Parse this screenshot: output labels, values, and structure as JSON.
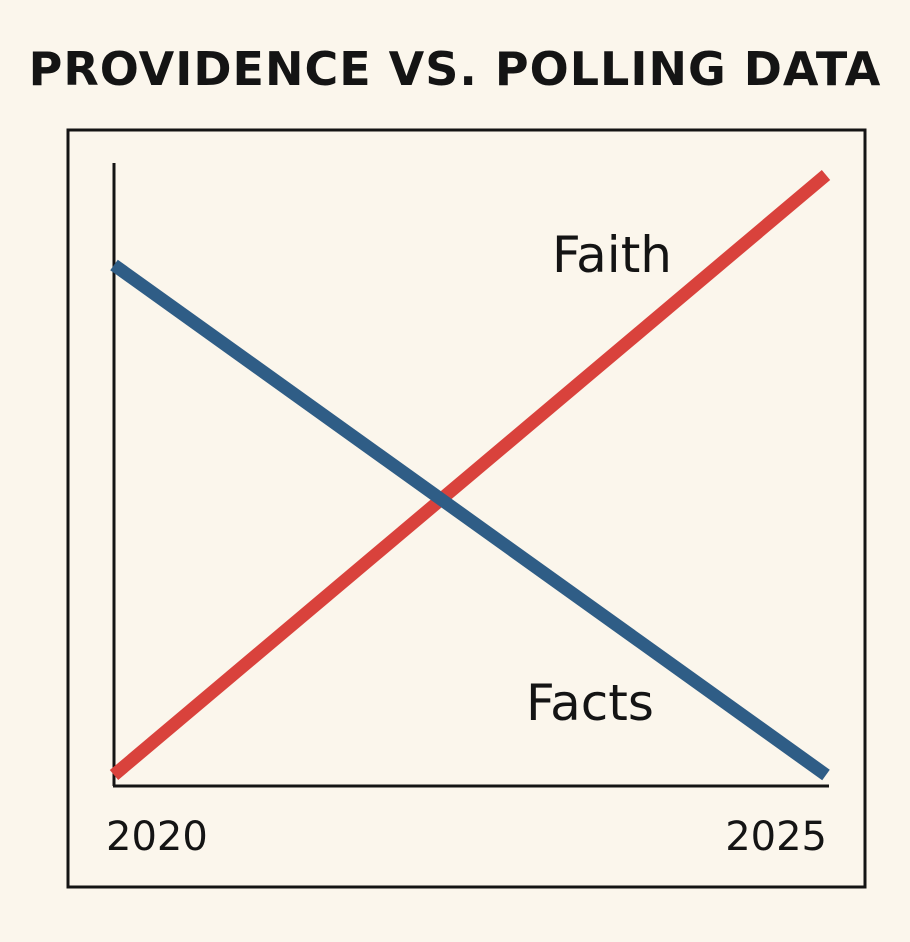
{
  "chart_data": {
    "type": "line",
    "title": "PROVIDENCE VS. POLLING DATA",
    "xlabel": "",
    "ylabel": "",
    "x_tick_labels": [
      "2020",
      "2025"
    ],
    "x": [
      2020,
      2025
    ],
    "grid": false,
    "series": [
      {
        "name": "Faith",
        "values": [
          0,
          100
        ],
        "color": "#d9423c"
      },
      {
        "name": "Facts",
        "values": [
          85,
          0
        ],
        "color": "#2f5d86"
      }
    ],
    "ylim": [
      0,
      100
    ]
  }
}
